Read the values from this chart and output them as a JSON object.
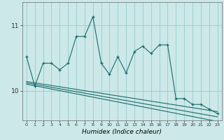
{
  "xlabel": "Humidex (Indice chaleur)",
  "bg_color": "#cce8e8",
  "grid_color": "#99cccc",
  "line_color": "#1a6b6b",
  "xlim": [
    -0.5,
    23.5
  ],
  "ylim": [
    9.55,
    11.35
  ],
  "yticks": [
    10,
    11
  ],
  "xticks": [
    0,
    1,
    2,
    3,
    4,
    5,
    6,
    7,
    8,
    9,
    10,
    11,
    12,
    13,
    14,
    15,
    16,
    17,
    18,
    19,
    20,
    21,
    22,
    23
  ],
  "jagged_x": [
    0,
    1,
    2,
    3,
    4,
    5,
    6,
    7,
    8,
    9,
    10,
    11,
    12,
    13,
    14,
    15,
    16,
    17,
    18,
    19,
    20,
    21,
    22,
    23
  ],
  "jagged_y": [
    10.52,
    10.07,
    10.42,
    10.42,
    10.32,
    10.42,
    10.83,
    10.83,
    11.13,
    10.42,
    10.25,
    10.52,
    10.27,
    10.6,
    10.68,
    10.57,
    10.7,
    10.7,
    9.88,
    9.88,
    9.79,
    9.79,
    9.72,
    9.65
  ],
  "straight_lines": [
    {
      "x": [
        0,
        23
      ],
      "y": [
        10.14,
        9.68
      ]
    },
    {
      "x": [
        0,
        23
      ],
      "y": [
        10.12,
        9.6
      ]
    },
    {
      "x": [
        0,
        23
      ],
      "y": [
        10.1,
        9.53
      ]
    }
  ],
  "line_width": 0.8,
  "marker_size": 3.5
}
